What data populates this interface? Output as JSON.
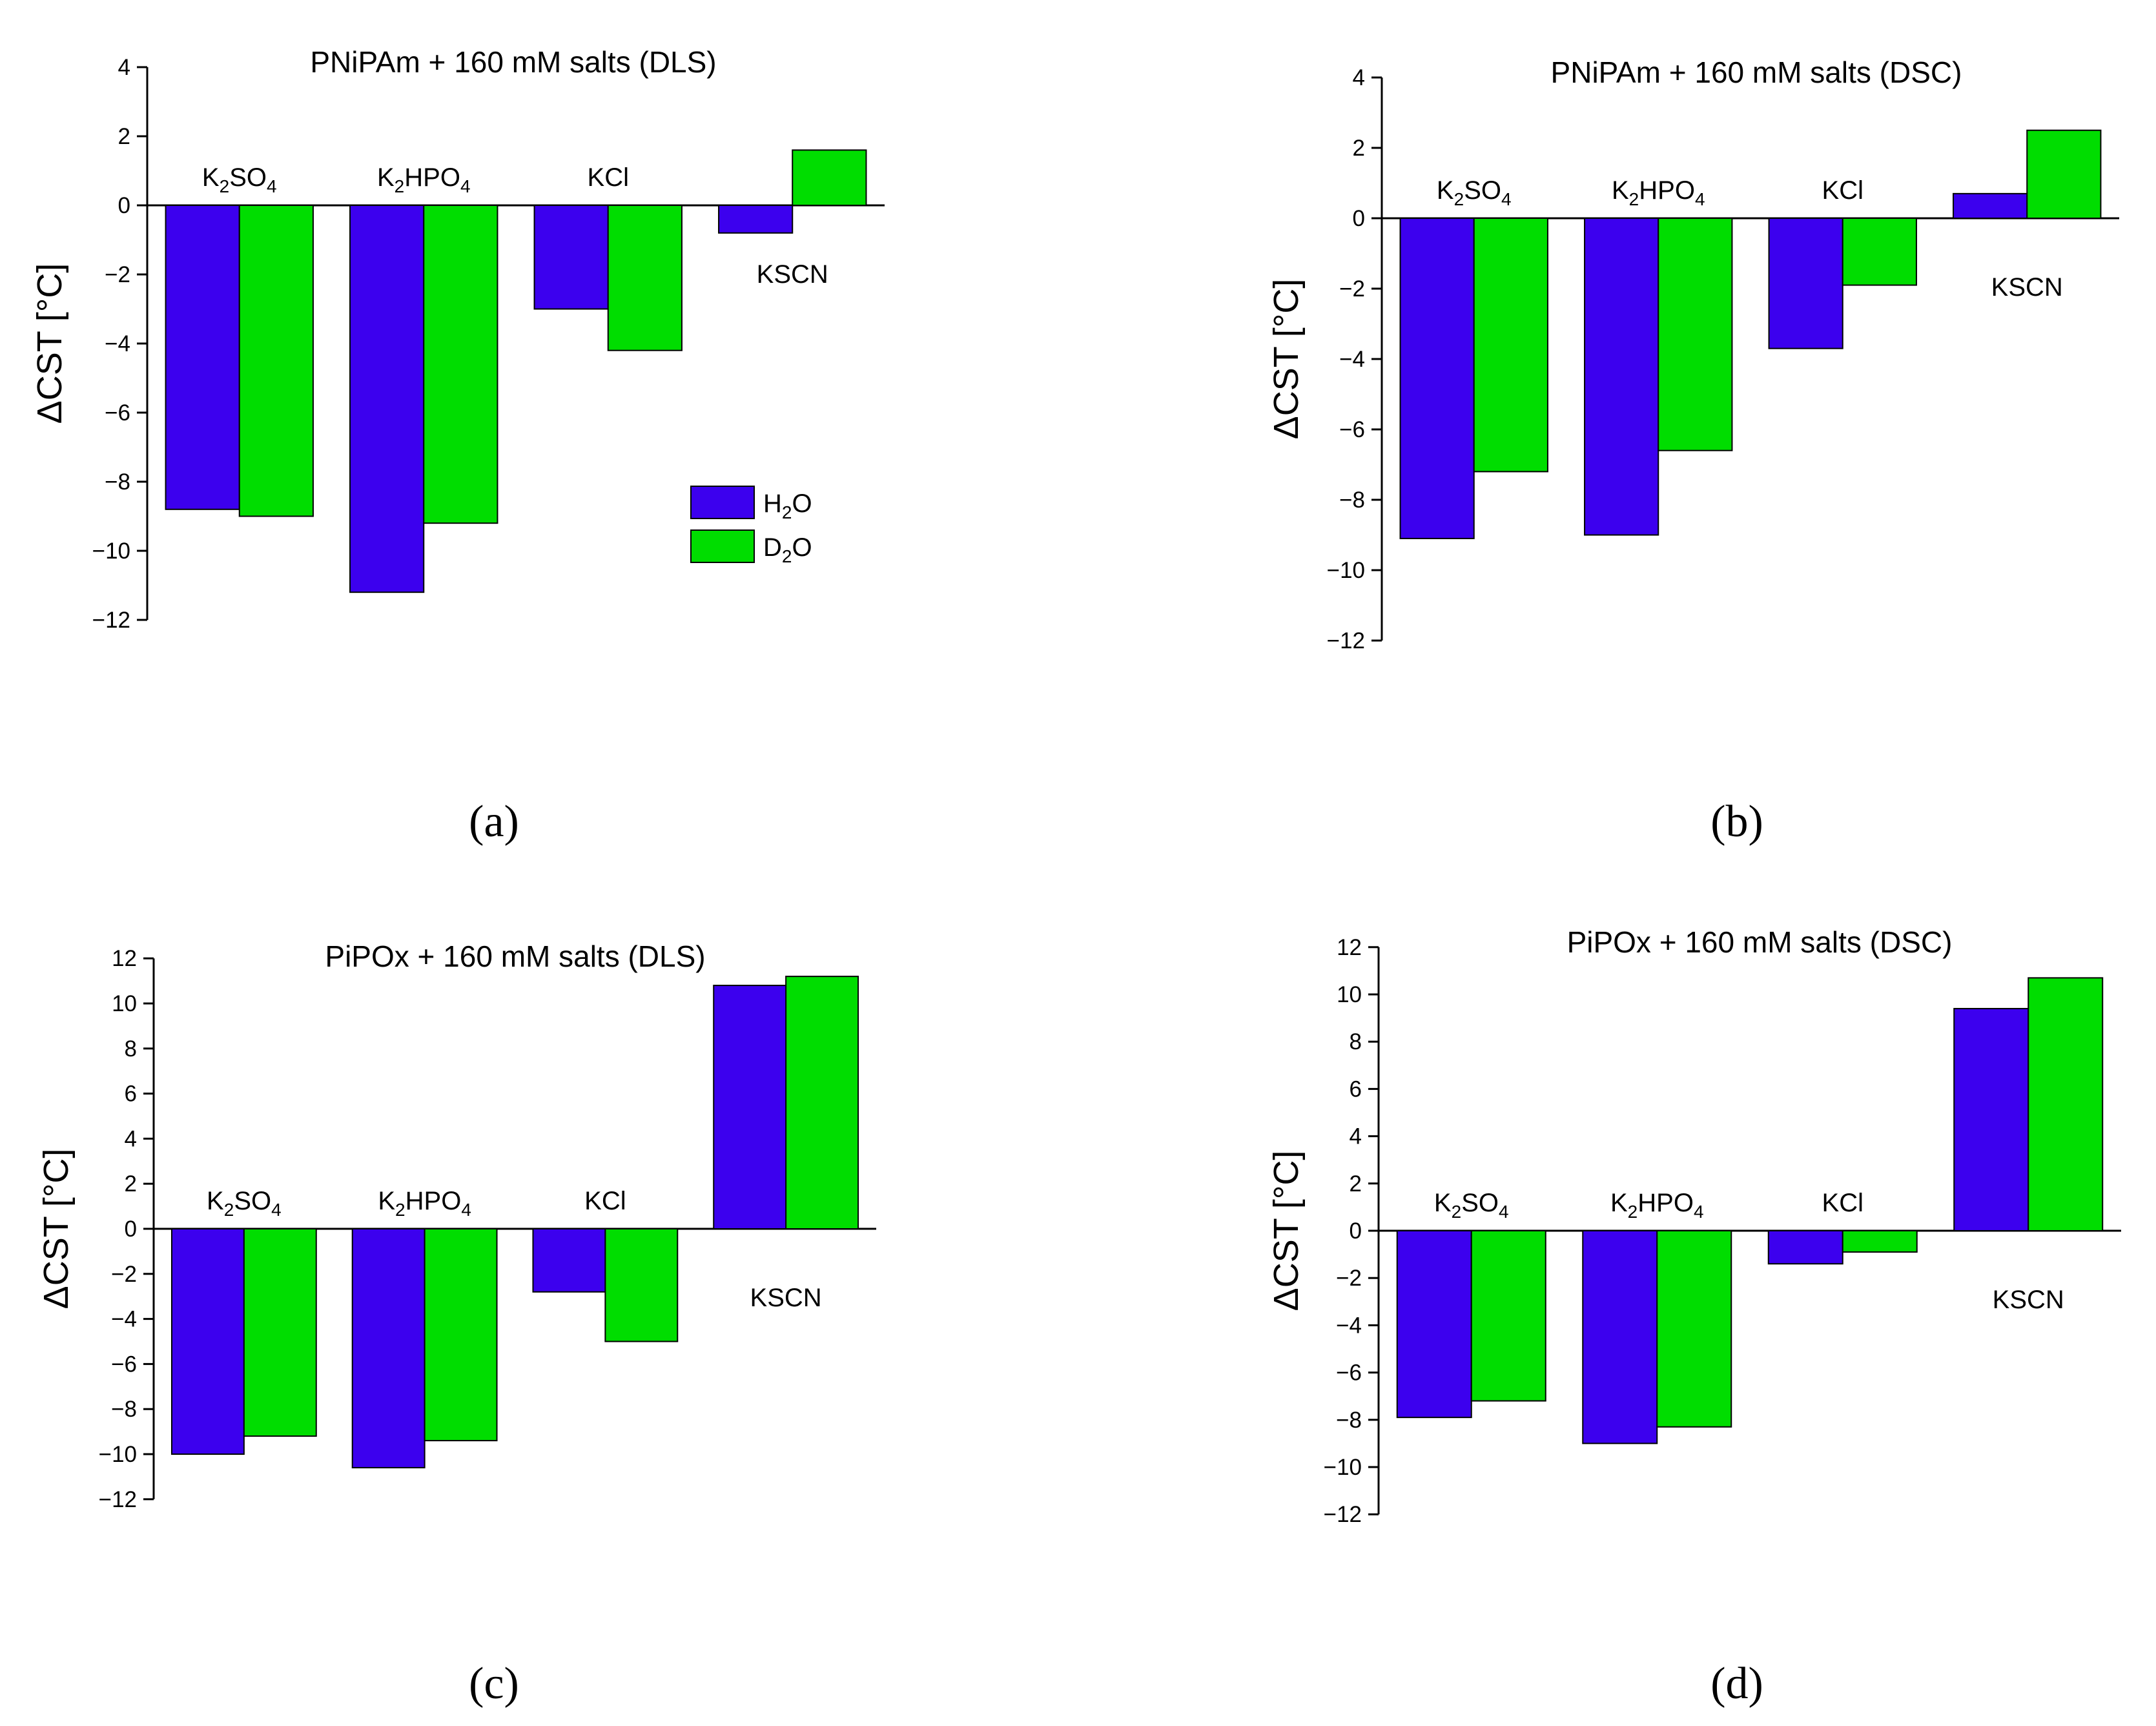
{
  "colors": {
    "h2o": "#3c00ee",
    "d2o": "#00dd00"
  },
  "legend": {
    "h2o": "H2O",
    "d2o": "D2O"
  },
  "chart_data": [
    {
      "type": "bar",
      "panel": "(a)",
      "title": "PNiPAm + 160 mM salts (DLS)",
      "ylabel": "ΔCST [°C]",
      "ylim": [
        -12,
        4
      ],
      "yticks": [
        4,
        2,
        0,
        -2,
        -4,
        -6,
        -8,
        -10,
        -12
      ],
      "categories": [
        "K2SO4",
        "K2HPO4",
        "KCl",
        "KSCN"
      ],
      "label_pos": [
        "above",
        "above",
        "above",
        "below"
      ],
      "series": [
        {
          "name": "H2O",
          "values": [
            -8.8,
            -11.2,
            -3.0,
            -0.8
          ]
        },
        {
          "name": "D2O",
          "values": [
            -9.0,
            -9.2,
            -4.2,
            1.6
          ]
        }
      ],
      "legend": true
    },
    {
      "type": "bar",
      "panel": "(b)",
      "title": "PNiPAm + 160 mM salts (DSC)",
      "ylabel": "ΔCST [°C]",
      "ylim": [
        -12,
        4
      ],
      "yticks": [
        4,
        2,
        0,
        -2,
        -4,
        -6,
        -8,
        -10,
        -12
      ],
      "categories": [
        "K2SO4",
        "K2HPO4",
        "KCl",
        "KSCN"
      ],
      "label_pos": [
        "above",
        "above",
        "above",
        "below"
      ],
      "series": [
        {
          "name": "H2O",
          "values": [
            -9.1,
            -9.0,
            -3.7,
            0.7
          ]
        },
        {
          "name": "D2O",
          "values": [
            -7.2,
            -6.6,
            -1.9,
            2.5
          ]
        }
      ],
      "legend": false
    },
    {
      "type": "bar",
      "panel": "(c)",
      "title": "PiPOx + 160 mM salts (DLS)",
      "ylabel": "ΔCST [°C]",
      "ylim": [
        -12,
        12
      ],
      "yticks": [
        12,
        10,
        8,
        6,
        4,
        2,
        0,
        -2,
        -4,
        -6,
        -8,
        -10,
        -12
      ],
      "categories": [
        "K2SO4",
        "K2HPO4",
        "KCl",
        "KSCN"
      ],
      "label_pos": [
        "above",
        "above",
        "above",
        "below"
      ],
      "series": [
        {
          "name": "H2O",
          "values": [
            -10.0,
            -10.6,
            -2.8,
            10.8
          ]
        },
        {
          "name": "D2O",
          "values": [
            -9.2,
            -9.4,
            -5.0,
            11.2
          ]
        }
      ],
      "legend": false
    },
    {
      "type": "bar",
      "panel": "(d)",
      "title": "PiPOx + 160 mM salts (DSC)",
      "ylabel": "ΔCST [°C]",
      "ylim": [
        -12,
        12
      ],
      "yticks": [
        12,
        10,
        8,
        6,
        4,
        2,
        0,
        -2,
        -4,
        -6,
        -8,
        -10,
        -12
      ],
      "categories": [
        "K2SO4",
        "K2HPO4",
        "KCl",
        "KSCN"
      ],
      "label_pos": [
        "above",
        "above",
        "above",
        "below"
      ],
      "series": [
        {
          "name": "H2O",
          "values": [
            -7.9,
            -9.0,
            -1.4,
            9.4
          ]
        },
        {
          "name": "D2O",
          "values": [
            -7.2,
            -8.3,
            -0.9,
            10.7
          ]
        }
      ],
      "legend": false
    }
  ]
}
